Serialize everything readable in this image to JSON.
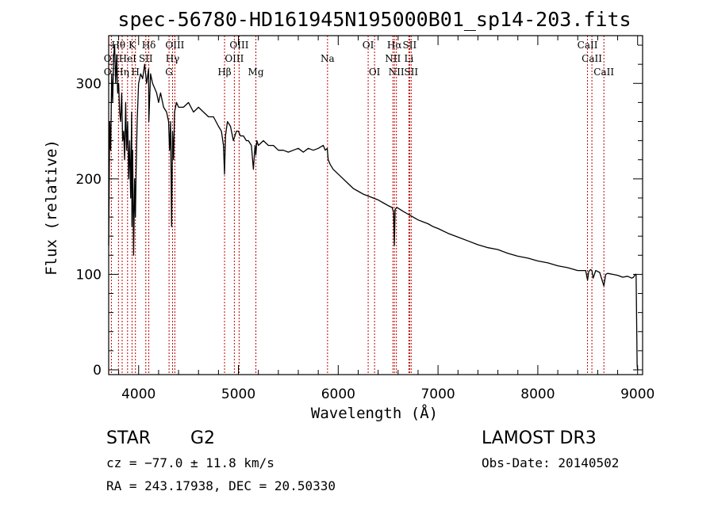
{
  "chart_data": {
    "type": "line",
    "title": "spec-56780-HD161945N195000B01_sp14-203.fits",
    "xlabel": "Wavelength (Å)",
    "ylabel": "Flux (relative)",
    "xlim": [
      3700,
      9050
    ],
    "ylim": [
      -5,
      350
    ],
    "xticks": [
      4000,
      5000,
      6000,
      7000,
      8000,
      9000
    ],
    "yticks": [
      0,
      100,
      200,
      300
    ],
    "x_minor_step": 200,
    "y_minor_step": 20,
    "series": [
      {
        "name": "spectrum",
        "x": [
          3700,
          3710,
          3720,
          3730,
          3740,
          3750,
          3760,
          3770,
          3780,
          3790,
          3800,
          3810,
          3820,
          3830,
          3840,
          3850,
          3860,
          3870,
          3880,
          3890,
          3900,
          3910,
          3920,
          3930,
          3933,
          3940,
          3950,
          3960,
          3968,
          3975,
          3985,
          4000,
          4020,
          4040,
          4060,
          4080,
          4100,
          4102,
          4120,
          4140,
          4160,
          4180,
          4200,
          4220,
          4250,
          4280,
          4300,
          4310,
          4320,
          4330,
          4340,
          4350,
          4360,
          4380,
          4400,
          4450,
          4500,
          4550,
          4600,
          4650,
          4700,
          4750,
          4800,
          4830,
          4850,
          4861,
          4870,
          4890,
          4920,
          4950,
          4980,
          5000,
          5020,
          5050,
          5080,
          5100,
          5130,
          5150,
          5167,
          5175,
          5185,
          5200,
          5250,
          5300,
          5350,
          5400,
          5450,
          5500,
          5550,
          5600,
          5650,
          5700,
          5750,
          5800,
          5850,
          5870,
          5890,
          5900,
          5920,
          5950,
          6000,
          6050,
          6100,
          6150,
          6200,
          6250,
          6300,
          6350,
          6400,
          6450,
          6500,
          6540,
          6555,
          6563,
          6570,
          6590,
          6620,
          6650,
          6700,
          6750,
          6800,
          6850,
          6900,
          6950,
          7000,
          7100,
          7200,
          7300,
          7400,
          7500,
          7600,
          7700,
          7800,
          7900,
          8000,
          8100,
          8200,
          8300,
          8400,
          8450,
          8480,
          8498,
          8510,
          8530,
          8542,
          8555,
          8580,
          8620,
          8662,
          8680,
          8700,
          8750,
          8800,
          8850,
          8900,
          8940,
          8960,
          8970,
          8980,
          8985,
          8990,
          8995,
          9000
        ],
        "values": [
          130,
          260,
          230,
          310,
          280,
          330,
          340,
          300,
          330,
          290,
          300,
          270,
          260,
          290,
          240,
          250,
          220,
          280,
          230,
          260,
          200,
          240,
          180,
          270,
          150,
          230,
          120,
          200,
          160,
          210,
          260,
          300,
          310,
          305,
          320,
          300,
          315,
          260,
          310,
          300,
          295,
          290,
          280,
          290,
          275,
          270,
          260,
          230,
          260,
          150,
          250,
          220,
          270,
          280,
          275,
          275,
          280,
          270,
          275,
          270,
          265,
          265,
          255,
          250,
          235,
          205,
          245,
          260,
          255,
          240,
          250,
          250,
          245,
          245,
          240,
          240,
          235,
          210,
          235,
          225,
          240,
          235,
          240,
          235,
          235,
          230,
          230,
          228,
          230,
          232,
          228,
          232,
          230,
          232,
          235,
          230,
          232,
          220,
          215,
          210,
          205,
          200,
          195,
          190,
          187,
          184,
          182,
          180,
          178,
          175,
          172,
          170,
          165,
          130,
          168,
          170,
          168,
          166,
          163,
          160,
          157,
          155,
          153,
          150,
          148,
          143,
          139,
          135,
          131,
          128,
          126,
          122,
          119,
          117,
          114,
          112,
          109,
          107,
          104,
          104,
          104,
          94,
          103,
          105,
          104,
          96,
          104,
          102,
          88,
          100,
          101,
          100,
          99,
          97,
          98,
          96,
          97,
          99,
          100,
          100,
          50,
          5,
          0
        ]
      }
    ],
    "line_markers": [
      {
        "label": "Hθ",
        "x": 3798,
        "row": 1
      },
      {
        "label": "K",
        "x": 3934,
        "row": 1
      },
      {
        "label": "Hδ",
        "x": 4102,
        "row": 1
      },
      {
        "label": "OIII",
        "x": 4363,
        "row": 1
      },
      {
        "label": "OIII",
        "x": 5007,
        "row": 1
      },
      {
        "label": "OI",
        "x": 6300,
        "row": 1
      },
      {
        "label": "Hα",
        "x": 6563,
        "row": 1
      },
      {
        "label": "SII",
        "x": 6716,
        "row": 1
      },
      {
        "label": "CaII",
        "x": 8498,
        "row": 1
      },
      {
        "label": "OII",
        "x": 3727,
        "row": 2
      },
      {
        "label": "HeI",
        "x": 3889,
        "row": 2
      },
      {
        "label": "SII",
        "x": 4072,
        "row": 2
      },
      {
        "label": "Hγ",
        "x": 4340,
        "row": 2
      },
      {
        "label": "OIII",
        "x": 4959,
        "row": 2
      },
      {
        "label": "Na",
        "x": 5893,
        "row": 2
      },
      {
        "label": "NII",
        "x": 6548,
        "row": 2
      },
      {
        "label": "Li",
        "x": 6708,
        "row": 2
      },
      {
        "label": "CaII",
        "x": 8542,
        "row": 2
      },
      {
        "label": "OII",
        "x": 3727,
        "row": 3
      },
      {
        "label": "Hη",
        "x": 3835,
        "row": 3
      },
      {
        "label": "H",
        "x": 3968,
        "row": 3
      },
      {
        "label": "G",
        "x": 4305,
        "row": 3
      },
      {
        "label": "Hβ",
        "x": 4861,
        "row": 3
      },
      {
        "label": "Mg",
        "x": 5175,
        "row": 3
      },
      {
        "label": "OI",
        "x": 6364,
        "row": 3
      },
      {
        "label": "NII",
        "x": 6583,
        "row": 3
      },
      {
        "label": "SII",
        "x": 6731,
        "row": 3
      },
      {
        "label": "CaII",
        "x": 8662,
        "row": 3
      }
    ]
  },
  "info": {
    "object_class": "STAR",
    "subclass": "G2",
    "survey": "LAMOST DR3",
    "redshift_line": "cz = −77.0 ± 11.8 km/s",
    "obs_date": "Obs-Date: 20140502",
    "coords": "RA = 243.17938, DEC =  20.50330"
  },
  "colors": {
    "marker_line": "#c00000",
    "spectrum": "#000000",
    "axis": "#000000"
  }
}
